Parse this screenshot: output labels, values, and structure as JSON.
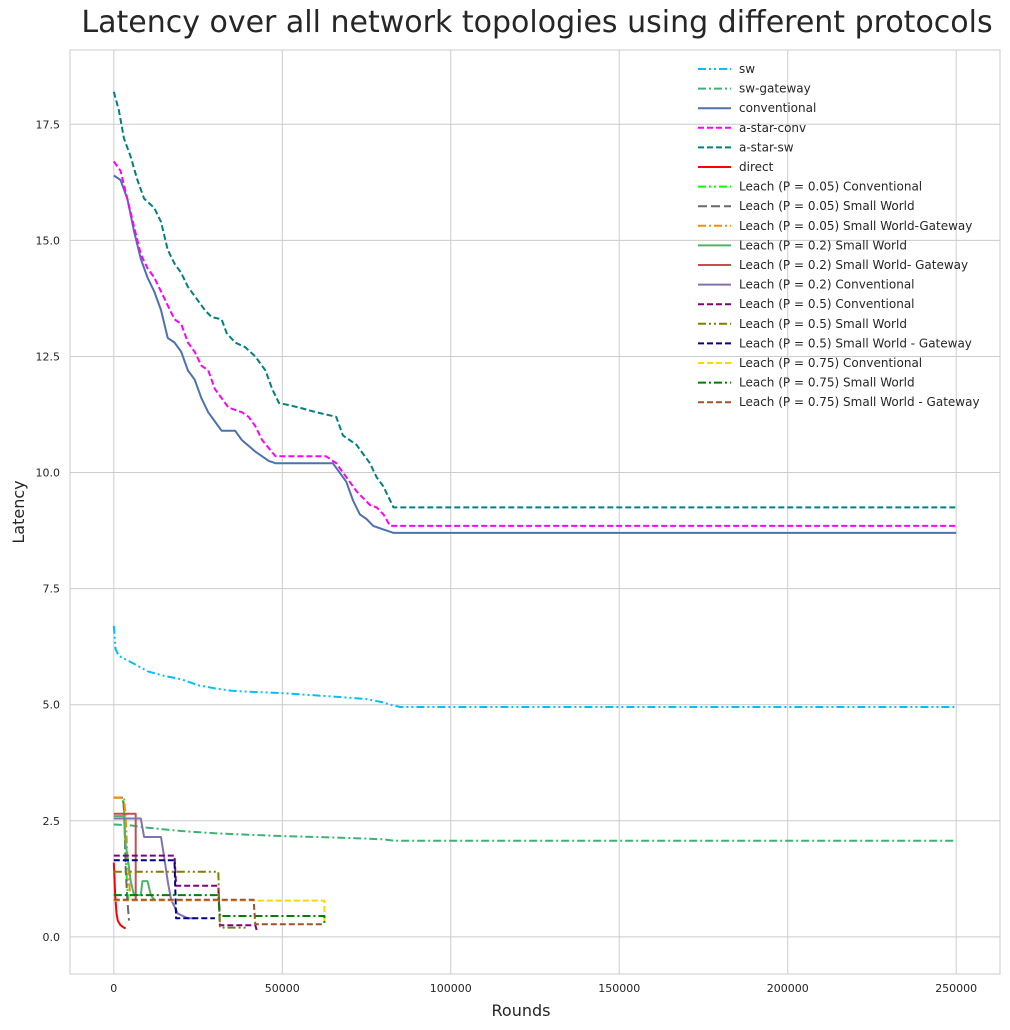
{
  "chart_data": {
    "type": "line",
    "title": "Latency over all network topologies using different protocols",
    "xlabel": "Rounds",
    "ylabel": "Latency",
    "xlim": [
      -13000,
      263000
    ],
    "ylim": [
      -0.8,
      19.1
    ],
    "xticks": [
      0,
      50000,
      100000,
      150000,
      200000,
      250000
    ],
    "yticks": [
      0.0,
      2.5,
      5.0,
      7.5,
      10.0,
      12.5,
      15.0,
      17.5
    ],
    "xtick_labels": [
      "0",
      "50000",
      "100000",
      "150000",
      "200000",
      "250000"
    ],
    "ytick_labels": [
      "0.0",
      "2.5",
      "5.0",
      "7.5",
      "10.0",
      "12.5",
      "15.0",
      "17.5"
    ],
    "grid": true,
    "legend_position": "top-right",
    "series": [
      {
        "name": "sw",
        "color": "#00bfff",
        "dash": "dashdotdot",
        "points": [
          [
            0,
            6.7
          ],
          [
            500,
            6.2
          ],
          [
            1500,
            6.05
          ],
          [
            5000,
            5.92
          ],
          [
            10000,
            5.72
          ],
          [
            15000,
            5.62
          ],
          [
            20000,
            5.55
          ],
          [
            25000,
            5.42
          ],
          [
            30000,
            5.35
          ],
          [
            35000,
            5.3
          ],
          [
            40000,
            5.28
          ],
          [
            50000,
            5.25
          ],
          [
            60000,
            5.2
          ],
          [
            70000,
            5.15
          ],
          [
            75000,
            5.12
          ],
          [
            80000,
            5.05
          ],
          [
            82000,
            5.0
          ],
          [
            85000,
            4.95
          ],
          [
            250000,
            4.95
          ]
        ]
      },
      {
        "name": "sw-gateway",
        "color": "#3cb371",
        "dash": "dashdot",
        "points": [
          [
            0,
            2.42
          ],
          [
            5000,
            2.4
          ],
          [
            10000,
            2.35
          ],
          [
            20000,
            2.28
          ],
          [
            30000,
            2.23
          ],
          [
            40000,
            2.2
          ],
          [
            50000,
            2.17
          ],
          [
            60000,
            2.15
          ],
          [
            70000,
            2.13
          ],
          [
            80000,
            2.1
          ],
          [
            83000,
            2.07
          ],
          [
            250000,
            2.07
          ]
        ]
      },
      {
        "name": "conventional",
        "color": "#4c72b0",
        "dash": "solid",
        "points": [
          [
            0,
            16.4
          ],
          [
            2000,
            16.3
          ],
          [
            4000,
            15.9
          ],
          [
            6000,
            15.2
          ],
          [
            8000,
            14.6
          ],
          [
            10000,
            14.2
          ],
          [
            12000,
            13.9
          ],
          [
            14000,
            13.5
          ],
          [
            16000,
            12.9
          ],
          [
            18000,
            12.8
          ],
          [
            20000,
            12.6
          ],
          [
            22000,
            12.2
          ],
          [
            24000,
            12.0
          ],
          [
            26000,
            11.6
          ],
          [
            28000,
            11.3
          ],
          [
            30000,
            11.1
          ],
          [
            32000,
            10.9
          ],
          [
            36000,
            10.9
          ],
          [
            38000,
            10.7
          ],
          [
            42000,
            10.45
          ],
          [
            44000,
            10.35
          ],
          [
            46000,
            10.25
          ],
          [
            48000,
            10.2
          ],
          [
            65000,
            10.2
          ],
          [
            67000,
            10.0
          ],
          [
            69000,
            9.8
          ],
          [
            71000,
            9.4
          ],
          [
            73000,
            9.1
          ],
          [
            75000,
            9.0
          ],
          [
            77000,
            8.85
          ],
          [
            79000,
            8.8
          ],
          [
            81000,
            8.75
          ],
          [
            83000,
            8.7
          ],
          [
            250000,
            8.7
          ]
        ]
      },
      {
        "name": "a-star-conv",
        "color": "#ff00ff",
        "dash": "dash",
        "points": [
          [
            0,
            16.7
          ],
          [
            2000,
            16.5
          ],
          [
            4000,
            15.9
          ],
          [
            6000,
            15.3
          ],
          [
            8000,
            14.7
          ],
          [
            10000,
            14.4
          ],
          [
            12000,
            14.2
          ],
          [
            14000,
            13.9
          ],
          [
            16000,
            13.6
          ],
          [
            18000,
            13.3
          ],
          [
            20000,
            13.2
          ],
          [
            22000,
            12.8
          ],
          [
            24000,
            12.6
          ],
          [
            26000,
            12.3
          ],
          [
            28000,
            12.2
          ],
          [
            30000,
            11.8
          ],
          [
            32000,
            11.6
          ],
          [
            34000,
            11.4
          ],
          [
            38000,
            11.3
          ],
          [
            40000,
            11.2
          ],
          [
            42000,
            11.0
          ],
          [
            44000,
            10.7
          ],
          [
            48000,
            10.35
          ],
          [
            63000,
            10.35
          ],
          [
            66000,
            10.2
          ],
          [
            68000,
            10.0
          ],
          [
            70000,
            9.8
          ],
          [
            72000,
            9.6
          ],
          [
            74000,
            9.45
          ],
          [
            76000,
            9.3
          ],
          [
            78000,
            9.25
          ],
          [
            80000,
            9.1
          ],
          [
            82000,
            8.85
          ],
          [
            250000,
            8.85
          ]
        ]
      },
      {
        "name": "a-star-sw",
        "color": "#008080",
        "dash": "dash",
        "points": [
          [
            0,
            18.2
          ],
          [
            1500,
            17.8
          ],
          [
            3000,
            17.2
          ],
          [
            5000,
            16.8
          ],
          [
            7000,
            16.3
          ],
          [
            9000,
            15.9
          ],
          [
            12000,
            15.7
          ],
          [
            14000,
            15.4
          ],
          [
            16000,
            14.8
          ],
          [
            18000,
            14.5
          ],
          [
            20000,
            14.3
          ],
          [
            22000,
            14.0
          ],
          [
            24000,
            13.8
          ],
          [
            27000,
            13.5
          ],
          [
            29000,
            13.35
          ],
          [
            32000,
            13.3
          ],
          [
            33500,
            13.0
          ],
          [
            36000,
            12.8
          ],
          [
            39000,
            12.7
          ],
          [
            42000,
            12.5
          ],
          [
            45000,
            12.2
          ],
          [
            47000,
            11.8
          ],
          [
            49000,
            11.5
          ],
          [
            55000,
            11.4
          ],
          [
            60000,
            11.3
          ],
          [
            66000,
            11.2
          ],
          [
            68000,
            10.8
          ],
          [
            72000,
            10.6
          ],
          [
            76000,
            10.2
          ],
          [
            78000,
            9.9
          ],
          [
            80000,
            9.7
          ],
          [
            83000,
            9.25
          ],
          [
            250000,
            9.25
          ]
        ]
      },
      {
        "name": "direct",
        "color": "#ff0000",
        "dash": "solid",
        "points": [
          [
            0,
            1.6
          ],
          [
            400,
            0.9
          ],
          [
            800,
            0.5
          ],
          [
            1200,
            0.35
          ],
          [
            2000,
            0.25
          ],
          [
            3000,
            0.2
          ],
          [
            3500,
            0.18
          ]
        ]
      },
      {
        "name": "Leach (P = 0.05) Conventional",
        "color": "#00ff00",
        "dash": "dashdotdot",
        "points": [
          [
            0,
            3.0
          ],
          [
            2500,
            3.0
          ],
          [
            3000,
            2.8
          ],
          [
            3500,
            1.7
          ],
          [
            4000,
            1.1
          ],
          [
            4200,
            0.8
          ]
        ]
      },
      {
        "name": "Leach (P = 0.05) Small World",
        "color": "#696969",
        "dash": "longdash",
        "points": [
          [
            0,
            3.0
          ],
          [
            2800,
            3.0
          ],
          [
            3200,
            2.5
          ],
          [
            3500,
            1.5
          ],
          [
            4000,
            0.8
          ],
          [
            4500,
            0.35
          ]
        ]
      },
      {
        "name": "Leach (P = 0.05) Small World-Gateway",
        "color": "#ff8c00",
        "dash": "dashdot",
        "points": [
          [
            0,
            3.0
          ],
          [
            3000,
            3.0
          ],
          [
            3500,
            2.6
          ],
          [
            4000,
            1.8
          ],
          [
            4500,
            1.2
          ],
          [
            5000,
            0.8
          ]
        ]
      },
      {
        "name": "Leach (P = 0.2) Small World",
        "color": "#4db46a",
        "dash": "solid",
        "points": [
          [
            0,
            2.6
          ],
          [
            3000,
            2.6
          ],
          [
            3500,
            2.0
          ],
          [
            4500,
            1.5
          ],
          [
            5000,
            1.2
          ],
          [
            6000,
            0.9
          ],
          [
            8000,
            0.9
          ],
          [
            8500,
            1.2
          ],
          [
            10000,
            1.2
          ],
          [
            11000,
            0.9
          ],
          [
            12000,
            0.8
          ]
        ]
      },
      {
        "name": "Leach (P = 0.2) Small World- Gateway",
        "color": "#c44e52",
        "dash": "solid",
        "points": [
          [
            0,
            2.65
          ],
          [
            5000,
            2.65
          ],
          [
            6500,
            2.65
          ],
          [
            6500,
            0.8
          ]
        ]
      },
      {
        "name": "Leach (P = 0.2) Conventional",
        "color": "#8172b2",
        "dash": "solid",
        "points": [
          [
            0,
            2.55
          ],
          [
            8000,
            2.55
          ],
          [
            9000,
            2.15
          ],
          [
            14000,
            2.15
          ],
          [
            15000,
            1.7
          ],
          [
            16000,
            1.2
          ],
          [
            17000,
            0.8
          ],
          [
            19000,
            0.5
          ],
          [
            22000,
            0.4
          ],
          [
            24000,
            0.4
          ]
        ]
      },
      {
        "name": "Leach (P = 0.5) Conventional",
        "color": "#800080",
        "dash": "dash",
        "points": [
          [
            0,
            1.75
          ],
          [
            18000,
            1.75
          ],
          [
            18500,
            1.1
          ],
          [
            31000,
            1.1
          ],
          [
            31500,
            0.25
          ],
          [
            42000,
            0.25
          ],
          [
            42500,
            0.12
          ]
        ]
      },
      {
        "name": "Leach (P = 0.5) Small World",
        "color": "#808000",
        "dash": "dashdotdot",
        "points": [
          [
            0,
            1.4
          ],
          [
            31000,
            1.4
          ],
          [
            31500,
            0.2
          ],
          [
            40000,
            0.2
          ]
        ]
      },
      {
        "name": "Leach (P = 0.5) Small World - Gateway",
        "color": "#00008b",
        "dash": "dash",
        "points": [
          [
            0,
            1.65
          ],
          [
            18000,
            1.65
          ],
          [
            18500,
            0.4
          ],
          [
            30000,
            0.4
          ]
        ]
      },
      {
        "name": "Leach (P = 0.75) Conventional",
        "color": "#ffd700",
        "dash": "dash",
        "points": [
          [
            0,
            0.78
          ],
          [
            62500,
            0.78
          ],
          [
            62500,
            0.3
          ]
        ]
      },
      {
        "name": "Leach (P = 0.75) Small World",
        "color": "#008000",
        "dash": "dashdot",
        "points": [
          [
            0,
            0.9
          ],
          [
            31000,
            0.9
          ],
          [
            31500,
            0.45
          ],
          [
            62500,
            0.45
          ],
          [
            62500,
            0.3
          ]
        ]
      },
      {
        "name": "Leach (P = 0.75) Small World - Gateway",
        "color": "#a0522d",
        "dash": "dash",
        "points": [
          [
            0,
            0.8
          ],
          [
            41500,
            0.8
          ],
          [
            42000,
            0.27
          ],
          [
            62500,
            0.27
          ]
        ]
      }
    ]
  }
}
